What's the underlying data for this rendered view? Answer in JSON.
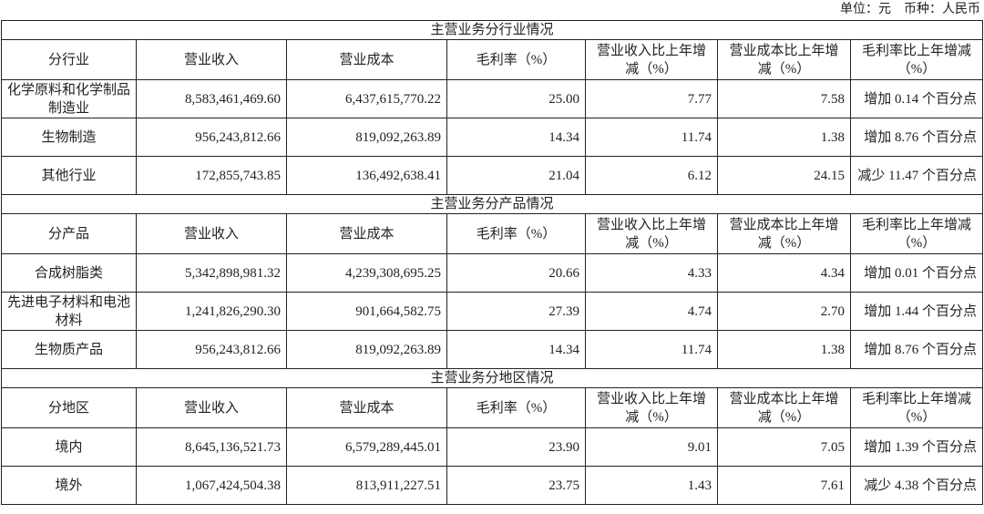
{
  "unit_note": "单位：元　币种：人民币",
  "sections": [
    {
      "title": "主营业务分行业情况",
      "headers": [
        "分行业",
        "营业收入",
        "营业成本",
        "毛利率（%）",
        "营业收入比上年增减（%）",
        "营业成本比上年增减（%）",
        "毛利率比上年增减（%）"
      ],
      "rows": [
        [
          "化学原料和化学制品制造业",
          "8,583,461,469.60",
          "6,437,615,770.22",
          "25.00",
          "7.77",
          "7.58",
          "增加 0.14 个百分点"
        ],
        [
          "生物制造",
          "956,243,812.66",
          "819,092,263.89",
          "14.34",
          "11.74",
          "1.38",
          "增加 8.76 个百分点"
        ],
        [
          "其他行业",
          "172,855,743.85",
          "136,492,638.41",
          "21.04",
          "6.12",
          "24.15",
          "减少 11.47 个百分点"
        ]
      ]
    },
    {
      "title": "主营业务分产品情况",
      "headers": [
        "分产品",
        "营业收入",
        "营业成本",
        "毛利率（%）",
        "营业收入比上年增减（%）",
        "营业成本比上年增减（%）",
        "毛利率比上年增减（%）"
      ],
      "rows": [
        [
          "合成树脂类",
          "5,342,898,981.32",
          "4,239,308,695.25",
          "20.66",
          "4.33",
          "4.34",
          "增加 0.01 个百分点"
        ],
        [
          "先进电子材料和电池材料",
          "1,241,826,290.30",
          "901,664,582.75",
          "27.39",
          "4.74",
          "2.70",
          "增加 1.44 个百分点"
        ],
        [
          "生物质产品",
          "956,243,812.66",
          "819,092,263.89",
          "14.34",
          "11.74",
          "1.38",
          "增加 8.76 个百分点"
        ]
      ]
    },
    {
      "title": "主营业务分地区情况",
      "headers": [
        "分地区",
        "营业收入",
        "营业成本",
        "毛利率（%）",
        "营业收入比上年增减（%）",
        "营业成本比上年增减（%）",
        "毛利率比上年增减（%）"
      ],
      "rows": [
        [
          "境内",
          "8,645,136,521.73",
          "6,579,289,445.01",
          "23.90",
          "9.01",
          "7.05",
          "增加 1.39 个百分点"
        ],
        [
          "境外",
          "1,067,424,504.38",
          "813,911,227.51",
          "23.75",
          "1.43",
          "7.61",
          "减少 4.38 个百分点"
        ]
      ]
    }
  ]
}
